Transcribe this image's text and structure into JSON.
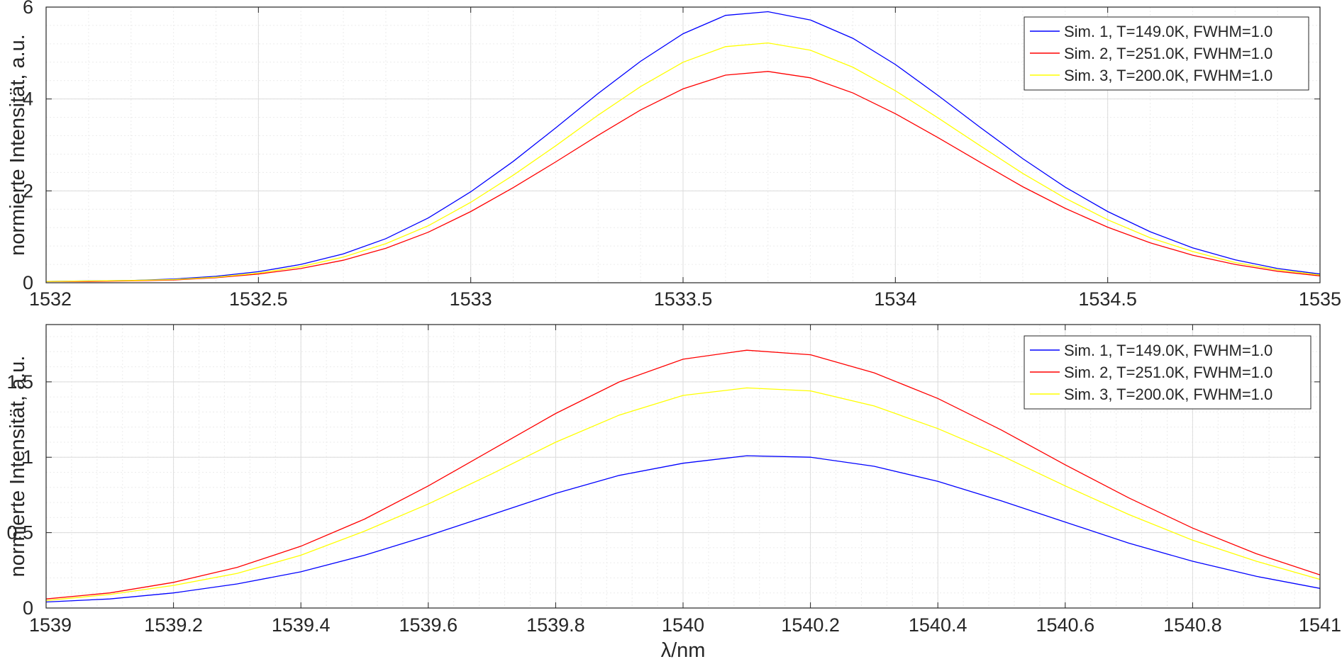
{
  "chart_data": [
    {
      "type": "line",
      "title": "",
      "xlabel": "",
      "ylabel": "normierte Intensität, a.u.",
      "xlim": [
        1532,
        1535
      ],
      "ylim": [
        0,
        6
      ],
      "xticks": [
        1532,
        1532.5,
        1533,
        1533.5,
        1534,
        1534.5,
        1535
      ],
      "xtick_labels": [
        "1532",
        "1532.5",
        "1533",
        "1533.5",
        "1534",
        "1534.5",
        "1535"
      ],
      "yticks": [
        0,
        2,
        4,
        6
      ],
      "ytick_labels": [
        "0",
        "2",
        "4",
        "6"
      ],
      "grid": true,
      "minor_grid": true,
      "legend_position": "top-right",
      "x": [
        1532.0,
        1532.1,
        1532.2,
        1532.3,
        1532.4,
        1532.5,
        1532.6,
        1532.7,
        1532.8,
        1532.9,
        1533.0,
        1533.1,
        1533.2,
        1533.3,
        1533.4,
        1533.5,
        1533.6,
        1533.7,
        1533.8,
        1533.9,
        1534.0,
        1534.1,
        1534.2,
        1534.3,
        1534.4,
        1534.5,
        1534.6,
        1534.7,
        1534.8,
        1534.9,
        1535.0
      ],
      "series": [
        {
          "name": "Sim. 1, T=149.0K, FWHM=1.0",
          "color": "#0000ff",
          "values": [
            0.03,
            0.04,
            0.05,
            0.08,
            0.14,
            0.24,
            0.4,
            0.63,
            0.96,
            1.41,
            1.98,
            2.64,
            3.37,
            4.12,
            4.82,
            5.42,
            5.82,
            5.9,
            5.72,
            5.32,
            4.75,
            4.08,
            3.38,
            2.7,
            2.08,
            1.55,
            1.11,
            0.76,
            0.5,
            0.31,
            0.19
          ]
        },
        {
          "name": "Sim. 2, T=251.0K, FWHM=1.0",
          "color": "#ff0000",
          "values": [
            0.03,
            0.03,
            0.04,
            0.06,
            0.11,
            0.19,
            0.31,
            0.49,
            0.75,
            1.1,
            1.55,
            2.07,
            2.63,
            3.21,
            3.76,
            4.22,
            4.52,
            4.6,
            4.46,
            4.13,
            3.68,
            3.16,
            2.62,
            2.09,
            1.62,
            1.21,
            0.87,
            0.6,
            0.4,
            0.25,
            0.15
          ]
        },
        {
          "name": "Sim. 3, T=200.0K, FWHM=1.0",
          "color": "#ffff00",
          "values": [
            0.03,
            0.04,
            0.05,
            0.07,
            0.12,
            0.21,
            0.35,
            0.56,
            0.85,
            1.24,
            1.75,
            2.34,
            2.98,
            3.65,
            4.27,
            4.8,
            5.14,
            5.22,
            5.06,
            4.69,
            4.18,
            3.59,
            2.98,
            2.38,
            1.84,
            1.37,
            0.98,
            0.68,
            0.44,
            0.28,
            0.17
          ]
        }
      ]
    },
    {
      "type": "line",
      "title": "",
      "xlabel": "λ/nm",
      "ylabel": "normierte Intensität, a.u.",
      "xlim": [
        1539,
        1541
      ],
      "ylim": [
        0,
        1.88
      ],
      "xticks": [
        1539,
        1539.2,
        1539.4,
        1539.6,
        1539.8,
        1540,
        1540.2,
        1540.4,
        1540.6,
        1540.8,
        1541
      ],
      "xtick_labels": [
        "1539",
        "1539.2",
        "1539.4",
        "1539.6",
        "1539.8",
        "1540",
        "1540.2",
        "1540.4",
        "1540.6",
        "1540.8",
        "1541"
      ],
      "yticks": [
        0,
        0.5,
        1,
        1.5
      ],
      "ytick_labels": [
        "0",
        "0.5",
        "1",
        "1.5"
      ],
      "grid": true,
      "minor_grid": true,
      "legend_position": "top-right",
      "x": [
        1539.0,
        1539.1,
        1539.2,
        1539.3,
        1539.4,
        1539.5,
        1539.6,
        1539.7,
        1539.8,
        1539.9,
        1540.0,
        1540.1,
        1540.2,
        1540.3,
        1540.4,
        1540.5,
        1540.6,
        1540.7,
        1540.8,
        1540.9,
        1541.0
      ],
      "series": [
        {
          "name": "Sim. 1, T=149.0K, FWHM=1.0",
          "color": "#0000ff",
          "values": [
            0.04,
            0.06,
            0.1,
            0.16,
            0.24,
            0.35,
            0.48,
            0.62,
            0.76,
            0.88,
            0.96,
            1.01,
            1.0,
            0.94,
            0.84,
            0.71,
            0.57,
            0.43,
            0.31,
            0.21,
            0.13
          ]
        },
        {
          "name": "Sim. 2, T=251.0K, FWHM=1.0",
          "color": "#ff0000",
          "values": [
            0.06,
            0.1,
            0.17,
            0.27,
            0.41,
            0.59,
            0.81,
            1.05,
            1.29,
            1.5,
            1.65,
            1.71,
            1.68,
            1.56,
            1.39,
            1.18,
            0.95,
            0.73,
            0.53,
            0.36,
            0.22
          ]
        },
        {
          "name": "Sim. 3, T=200.0K, FWHM=1.0",
          "color": "#ffff00",
          "values": [
            0.05,
            0.09,
            0.15,
            0.23,
            0.35,
            0.51,
            0.69,
            0.89,
            1.1,
            1.28,
            1.41,
            1.46,
            1.44,
            1.34,
            1.19,
            1.01,
            0.81,
            0.62,
            0.45,
            0.31,
            0.19
          ]
        }
      ]
    }
  ]
}
